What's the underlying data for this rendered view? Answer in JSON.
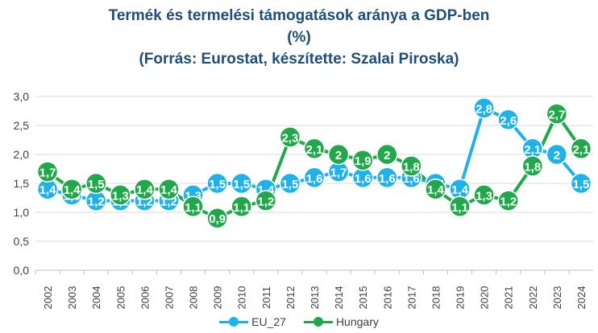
{
  "title_lines": [
    "Termék és termelési támogatások aránya a GDP-ben",
    "(%)",
    "(Forrás: Eurostat, készítette: Szalai Piroska)"
  ],
  "chart_data": {
    "type": "line",
    "categories": [
      "2002",
      "2003",
      "2004",
      "2005",
      "2006",
      "2007",
      "2008",
      "2009",
      "2010",
      "2011",
      "2012",
      "2013",
      "2014",
      "2015",
      "2016",
      "2017",
      "2018",
      "2019",
      "2020",
      "2021",
      "2022",
      "2023",
      "2024"
    ],
    "ylim": [
      0,
      3
    ],
    "yticks": [
      "0,0",
      "0,5",
      "1,0",
      "1,5",
      "2,0",
      "2,5",
      "3,0"
    ],
    "grid": true,
    "legend_position": "bottom",
    "series": [
      {
        "name": "EU_27",
        "color": "#1fb2e9",
        "values": [
          1.4,
          1.3,
          1.2,
          1.2,
          1.2,
          1.2,
          1.3,
          1.5,
          1.5,
          1.4,
          1.5,
          1.6,
          1.7,
          1.6,
          1.6,
          1.6,
          1.5,
          1.4,
          2.8,
          2.6,
          2.1,
          2.0,
          1.5
        ],
        "labels": [
          "1,4",
          "1,3",
          "1,2",
          "1,2",
          "1,2",
          "1,2",
          "1,3",
          "1,5",
          "1,5",
          "1,4",
          "1,5",
          "1,6",
          "1,7",
          "1,6",
          "1,6",
          "1,6",
          "1,5",
          "1,4",
          "2,8",
          "2,6",
          "2,1",
          "2",
          "1,5"
        ]
      },
      {
        "name": "Hungary",
        "color": "#21a84a",
        "values": [
          1.7,
          1.4,
          1.5,
          1.3,
          1.4,
          1.4,
          1.1,
          0.9,
          1.1,
          1.2,
          2.3,
          2.1,
          2.0,
          1.9,
          2.0,
          1.8,
          1.4,
          1.1,
          1.3,
          1.2,
          1.8,
          2.7,
          2.1
        ],
        "labels": [
          "1,7",
          "1,4",
          "1,5",
          "1,3",
          "1,4",
          "1,4",
          "1,1",
          "0,9",
          "1,1",
          "1,2",
          "2,3",
          "2,1",
          "2",
          "1,9",
          "2",
          "1,8",
          "1,4",
          "1,1",
          "1,3",
          "1,2",
          "1,8",
          "2,7",
          "2,1"
        ]
      }
    ]
  }
}
